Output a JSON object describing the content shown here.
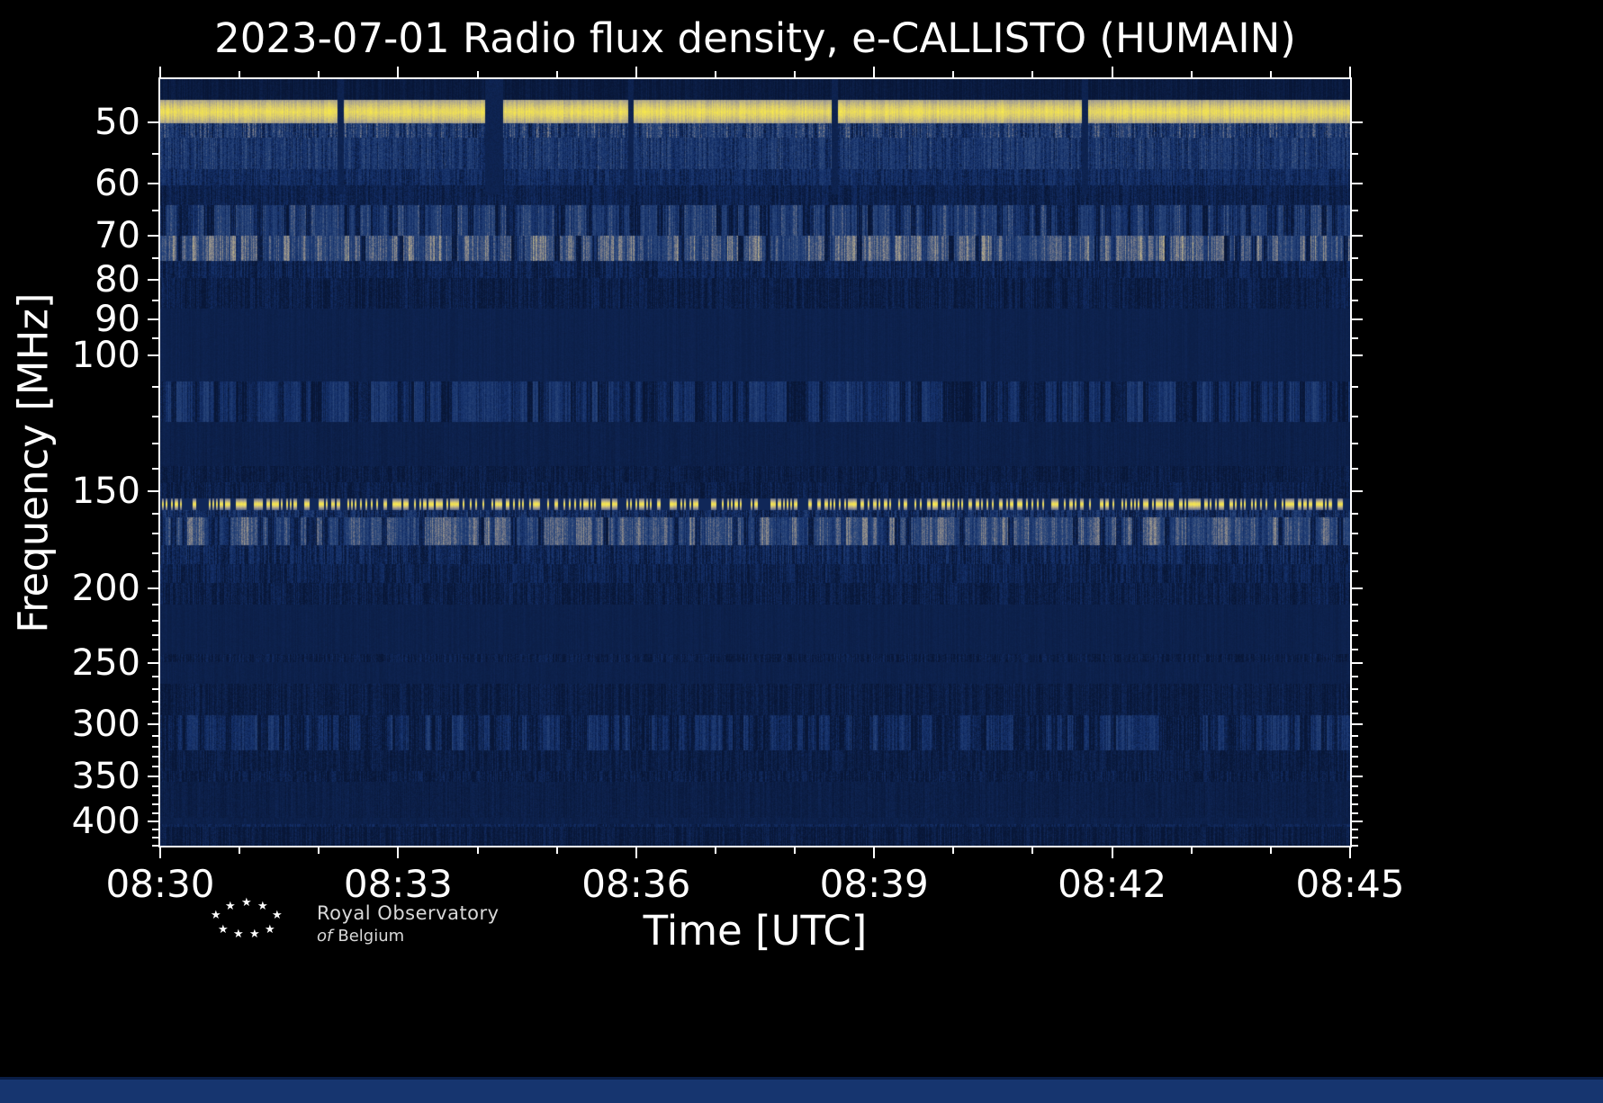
{
  "chart_data": {
    "type": "heatmap",
    "title": "2023-07-01 Radio flux density, e-CALLISTO (HUMAIN)",
    "xlabel": "Time [UTC]",
    "ylabel": "Frequency [MHz]",
    "x_range_minutes": [
      0,
      15
    ],
    "x_major_ticks": [
      {
        "t": 0,
        "label": "08:30"
      },
      {
        "t": 3,
        "label": "08:33"
      },
      {
        "t": 6,
        "label": "08:36"
      },
      {
        "t": 9,
        "label": "08:39"
      },
      {
        "t": 12,
        "label": "08:42"
      },
      {
        "t": 15,
        "label": "08:45"
      }
    ],
    "x_minor_ticks": [
      1,
      2,
      4,
      5,
      7,
      8,
      10,
      11,
      13,
      14
    ],
    "y_scale": "log",
    "y_range_mhz": [
      44,
      430
    ],
    "y_major_ticks": [
      50,
      60,
      70,
      80,
      90,
      100,
      150,
      200,
      250,
      300,
      350,
      400
    ],
    "y_minor_ticks": [
      55,
      65,
      75,
      85,
      95,
      110,
      120,
      130,
      140,
      160,
      170,
      180,
      190,
      210,
      220,
      230,
      240,
      260,
      270,
      280,
      290,
      310,
      320,
      330,
      340,
      360,
      370,
      380,
      390,
      410,
      420,
      430
    ],
    "colormap": [
      [
        0.0,
        "#081636"
      ],
      [
        0.2,
        "#14306a"
      ],
      [
        0.4,
        "#2e4a7c"
      ],
      [
        0.55,
        "#6e7386"
      ],
      [
        0.7,
        "#a9a28e"
      ],
      [
        0.82,
        "#ddce6c"
      ],
      [
        0.92,
        "#f7e84b"
      ],
      [
        1.0,
        "#fffb9e"
      ]
    ],
    "bands": [
      {
        "f0": 44.0,
        "f1": 46.8,
        "base": 0.1,
        "cn": 0.04,
        "pn": 0.03
      },
      {
        "f0": 46.8,
        "f1": 50.2,
        "base": 0.95,
        "cn": 0.05,
        "pn": 0.03,
        "edge": 0.2
      },
      {
        "f0": 50.2,
        "f1": 52.4,
        "base": 0.4,
        "cn": 0.2,
        "pn": 0.12,
        "bp": 0.5,
        "ba": 0.35
      },
      {
        "f0": 52.4,
        "f1": 57.5,
        "base": 0.48,
        "cn": 0.14,
        "pn": 0.1
      },
      {
        "f0": 57.5,
        "f1": 60.3,
        "base": 0.34,
        "cn": 0.1,
        "pn": 0.08
      },
      {
        "f0": 60.3,
        "f1": 64.0,
        "base": 0.22,
        "cn": 0.07,
        "pn": 0.06
      },
      {
        "f0": 64.0,
        "f1": 70.0,
        "base": 0.28,
        "cn": 0.13,
        "pn": 0.08,
        "bp": 0.18,
        "ba": 0.4
      },
      {
        "f0": 70.0,
        "f1": 75.5,
        "base": 0.32,
        "cn": 0.15,
        "pn": 0.08,
        "bp": 0.38,
        "ba": 0.62
      },
      {
        "f0": 75.5,
        "f1": 79.5,
        "base": 0.27,
        "cn": 0.1,
        "pn": 0.07
      },
      {
        "f0": 79.5,
        "f1": 87.0,
        "base": 0.21,
        "cn": 0.08,
        "pn": 0.06
      },
      {
        "f0": 87.0,
        "f1": 108.0,
        "base": 0.12,
        "cn": 0.015,
        "pn": 0.015
      },
      {
        "f0": 108.0,
        "f1": 122.0,
        "base": 0.19,
        "cn": 0.09,
        "pn": 0.06,
        "bp": 0.1,
        "ba": 0.3
      },
      {
        "f0": 122.0,
        "f1": 139.0,
        "base": 0.12,
        "cn": 0.02,
        "pn": 0.02
      },
      {
        "f0": 139.0,
        "f1": 146.0,
        "base": 0.17,
        "cn": 0.06,
        "pn": 0.05
      },
      {
        "f0": 146.0,
        "f1": 153.0,
        "base": 0.21,
        "cn": 0.08,
        "pn": 0.06
      },
      {
        "f0": 153.0,
        "f1": 158.5,
        "base": 0.96,
        "cn": 0.03,
        "pn": 0.02,
        "edge": 0.45,
        "brk": 0.05
      },
      {
        "f0": 158.5,
        "f1": 162.0,
        "base": 0.42,
        "cn": 0.16,
        "pn": 0.1
      },
      {
        "f0": 162.0,
        "f1": 176.0,
        "base": 0.28,
        "cn": 0.12,
        "pn": 0.08,
        "bp": 0.3,
        "ba": 0.58
      },
      {
        "f0": 176.0,
        "f1": 186.0,
        "base": 0.32,
        "cn": 0.12,
        "pn": 0.08
      },
      {
        "f0": 186.0,
        "f1": 197.0,
        "base": 0.24,
        "cn": 0.09,
        "pn": 0.06
      },
      {
        "f0": 197.0,
        "f1": 210.0,
        "base": 0.21,
        "cn": 0.08,
        "pn": 0.06
      },
      {
        "f0": 210.0,
        "f1": 243.0,
        "base": 0.115,
        "cn": 0.015,
        "pn": 0.015
      },
      {
        "f0": 243.0,
        "f1": 249.0,
        "base": 0.19,
        "cn": 0.07,
        "pn": 0.05
      },
      {
        "f0": 249.0,
        "f1": 266.0,
        "base": 0.115,
        "cn": 0.015,
        "pn": 0.015
      },
      {
        "f0": 266.0,
        "f1": 292.0,
        "base": 0.17,
        "cn": 0.06,
        "pn": 0.05
      },
      {
        "f0": 292.0,
        "f1": 324.0,
        "base": 0.22,
        "cn": 0.1,
        "pn": 0.07,
        "bp": 0.06,
        "ba": 0.25
      },
      {
        "f0": 324.0,
        "f1": 344.0,
        "base": 0.17,
        "cn": 0.06,
        "pn": 0.05
      },
      {
        "f0": 344.0,
        "f1": 356.0,
        "base": 0.2,
        "cn": 0.08,
        "pn": 0.06
      },
      {
        "f0": 356.0,
        "f1": 396.0,
        "base": 0.13,
        "cn": 0.03,
        "pn": 0.03
      },
      {
        "f0": 396.0,
        "f1": 403.0,
        "base": 0.12,
        "cn": 0.02,
        "pn": 0.02
      },
      {
        "f0": 403.0,
        "f1": 407.0,
        "base": 0.24,
        "cn": 0.08,
        "pn": 0.05
      },
      {
        "f0": 407.0,
        "f1": 435.0,
        "base": 0.17,
        "cn": 0.07,
        "pn": 0.05
      }
    ],
    "dropouts_min": [
      {
        "t0": 2.24,
        "t1": 2.32,
        "fmax": 62
      },
      {
        "t0": 4.1,
        "t1": 4.32,
        "fmax": 62
      },
      {
        "t0": 5.9,
        "t1": 5.97,
        "fmax": 62
      },
      {
        "t0": 8.47,
        "t1": 8.54,
        "fmax": 62
      },
      {
        "t0": 11.62,
        "t1": 11.7,
        "fmax": 62
      }
    ]
  },
  "footer": {
    "logo_line1": "Royal Observatory",
    "logo_of": "of",
    "logo_belgium": "Belgium",
    "star": "★"
  }
}
